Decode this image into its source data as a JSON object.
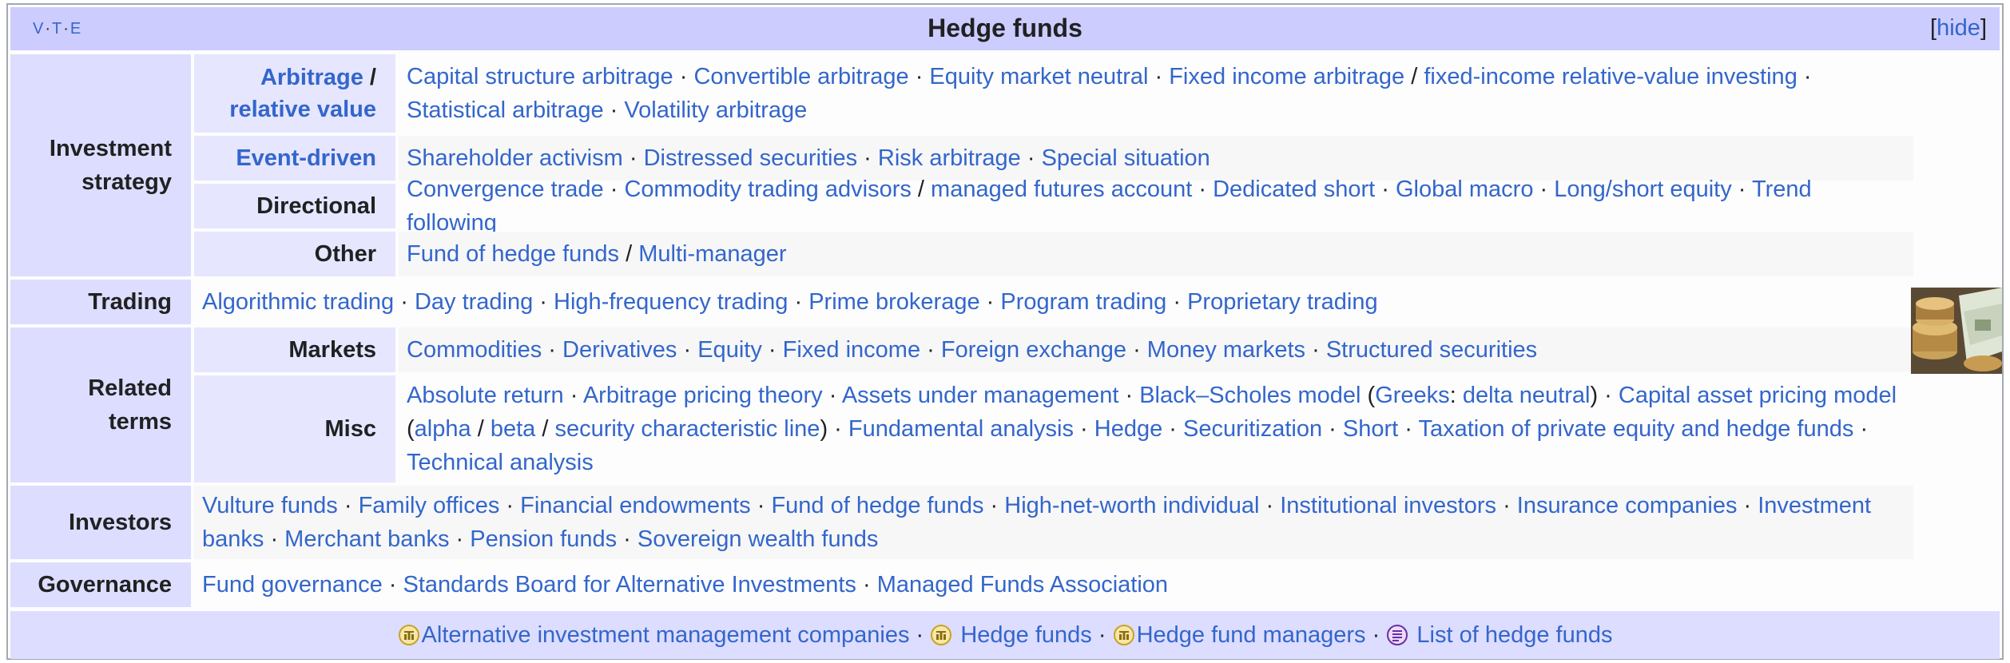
{
  "header": {
    "vte": [
      "V",
      "T",
      "E"
    ],
    "title": "Hedge funds",
    "hide_open": "[",
    "hide_label": "hide",
    "hide_close": "]"
  },
  "separator": " · ",
  "groups": {
    "investment_strategy": {
      "label": "Investment strategy",
      "arbitrage": {
        "label_1": "Arbitrage",
        "label_slash": " /",
        "label_2": "relative value",
        "items": [
          "Capital structure arbitrage",
          "Convertible arbitrage",
          "Equity market neutral",
          "Fixed income arbitrage",
          "fixed-income relative-value investing",
          "Statistical arbitrage",
          "Volatility arbitrage"
        ]
      },
      "event_driven": {
        "label": "Event-driven",
        "items": [
          "Shareholder activism",
          "Distressed securities",
          "Risk arbitrage",
          "Special situation"
        ]
      },
      "directional": {
        "label": "Directional",
        "items": [
          "Convergence trade",
          "Commodity trading advisors",
          "managed futures account",
          "Dedicated short",
          "Global macro",
          "Long/short equity",
          "Trend following"
        ]
      },
      "other": {
        "label": "Other",
        "items": [
          "Fund of hedge funds",
          "Multi-manager"
        ]
      }
    },
    "trading": {
      "label": "Trading",
      "items": [
        "Algorithmic trading",
        "Day trading",
        "High-frequency trading",
        "Prime brokerage",
        "Program trading",
        "Proprietary trading"
      ]
    },
    "related_terms": {
      "label": "Related terms",
      "markets": {
        "label": "Markets",
        "items": [
          "Commodities",
          "Derivatives",
          "Equity",
          "Fixed income",
          "Foreign exchange",
          "Money markets",
          "Structured securities"
        ]
      },
      "misc": {
        "label": "Misc",
        "items": [
          "Absolute return",
          "Arbitrage pricing theory",
          "Assets under management",
          "Black–Scholes model",
          "Greeks",
          "delta neutral",
          "Capital asset pricing model",
          "alpha",
          "beta",
          "security characteristic line",
          "Fundamental analysis",
          "Hedge",
          "Securitization",
          "Short",
          "Taxation of private equity and hedge funds",
          "Technical analysis"
        ]
      }
    },
    "investors": {
      "label": "Investors",
      "items": [
        "Vulture funds",
        "Family offices",
        "Financial endowments",
        "Fund of hedge funds",
        "High-net-worth individual",
        "Institutional investors",
        "Insurance companies",
        "Investment banks",
        "Merchant banks",
        "Pension funds",
        "Sovereign wealth funds"
      ]
    },
    "governance": {
      "label": "Governance",
      "items": [
        "Fund governance",
        "Standards Board for Alternative Investments",
        "Managed Funds Association"
      ]
    }
  },
  "footer": {
    "items": [
      "Alternative investment management companies",
      "Hedge funds",
      "Hedge fund managers",
      "List of hedge funds"
    ],
    "icons": [
      "category-icon",
      "category-icon",
      "category-icon",
      "list-icon"
    ],
    "category_icon_color": "#c9a227",
    "list_icon_color": "#6b2fa8"
  },
  "colors": {
    "title_bg": "#ccccff",
    "group_bg": "#ddddff",
    "subgroup_bg": "#e6e6ff",
    "link": "#3366cc",
    "text": "#202122"
  }
}
